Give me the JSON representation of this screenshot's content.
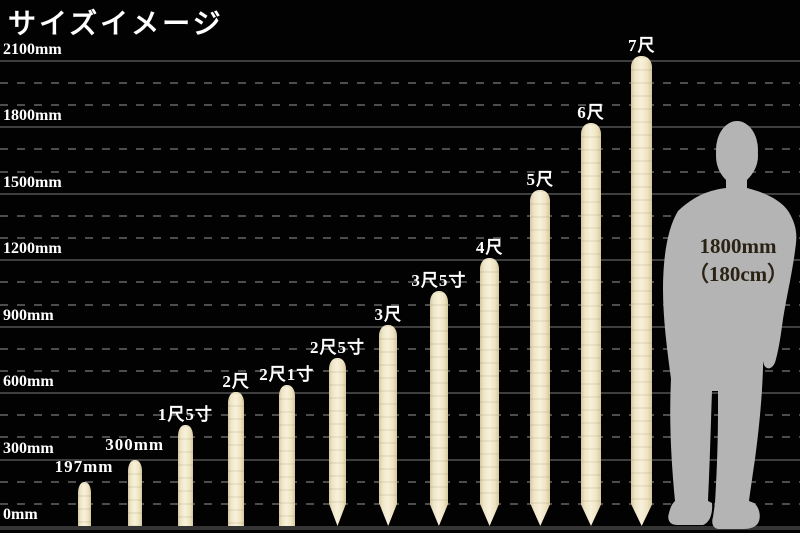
{
  "title": "サイズイメージ",
  "chart_data": {
    "type": "bar",
    "title": "サイズイメージ",
    "ylabel": "mm",
    "ylim": [
      0,
      2100
    ],
    "grid": "on",
    "gridline_step_mm": 100,
    "labeled_line_step_mm": 300,
    "axis_labels": [
      {
        "mm": 0,
        "label": "0mm"
      },
      {
        "mm": 300,
        "label": "300mm"
      },
      {
        "mm": 600,
        "label": "600mm"
      },
      {
        "mm": 900,
        "label": "900mm"
      },
      {
        "mm": 1200,
        "label": "1200mm"
      },
      {
        "mm": 1500,
        "label": "1500mm"
      },
      {
        "mm": 1800,
        "label": "1800mm"
      },
      {
        "mm": 2100,
        "label": "2100mm"
      }
    ],
    "categories": [
      "197mm",
      "300mm",
      "1尺5寸",
      "2尺",
      "2尺1寸",
      "2尺5寸",
      "3尺",
      "3尺5寸",
      "4尺",
      "5尺",
      "6尺",
      "7尺"
    ],
    "values_mm": [
      197,
      300,
      455,
      606,
      636,
      758,
      909,
      1061,
      1212,
      1515,
      1818,
      2121
    ],
    "pointed_tip": [
      false,
      false,
      false,
      false,
      false,
      true,
      true,
      true,
      true,
      true,
      true,
      true
    ],
    "bar_color": "#f2ead2",
    "reference_figure": {
      "type": "human-silhouette",
      "height_mm": 1800,
      "label_line1": "1800mm",
      "label_line2": "（180cm）",
      "color": "#b4b4b4"
    }
  },
  "colors": {
    "background": "#020202",
    "text": "#ffffff",
    "gridline_solid": "#3e3e3e",
    "gridline_dashed": "#4d4d4d",
    "stake": "#f2ead2",
    "silhouette": "#b4b4b4",
    "silhouette_text": "#2b2216"
  }
}
